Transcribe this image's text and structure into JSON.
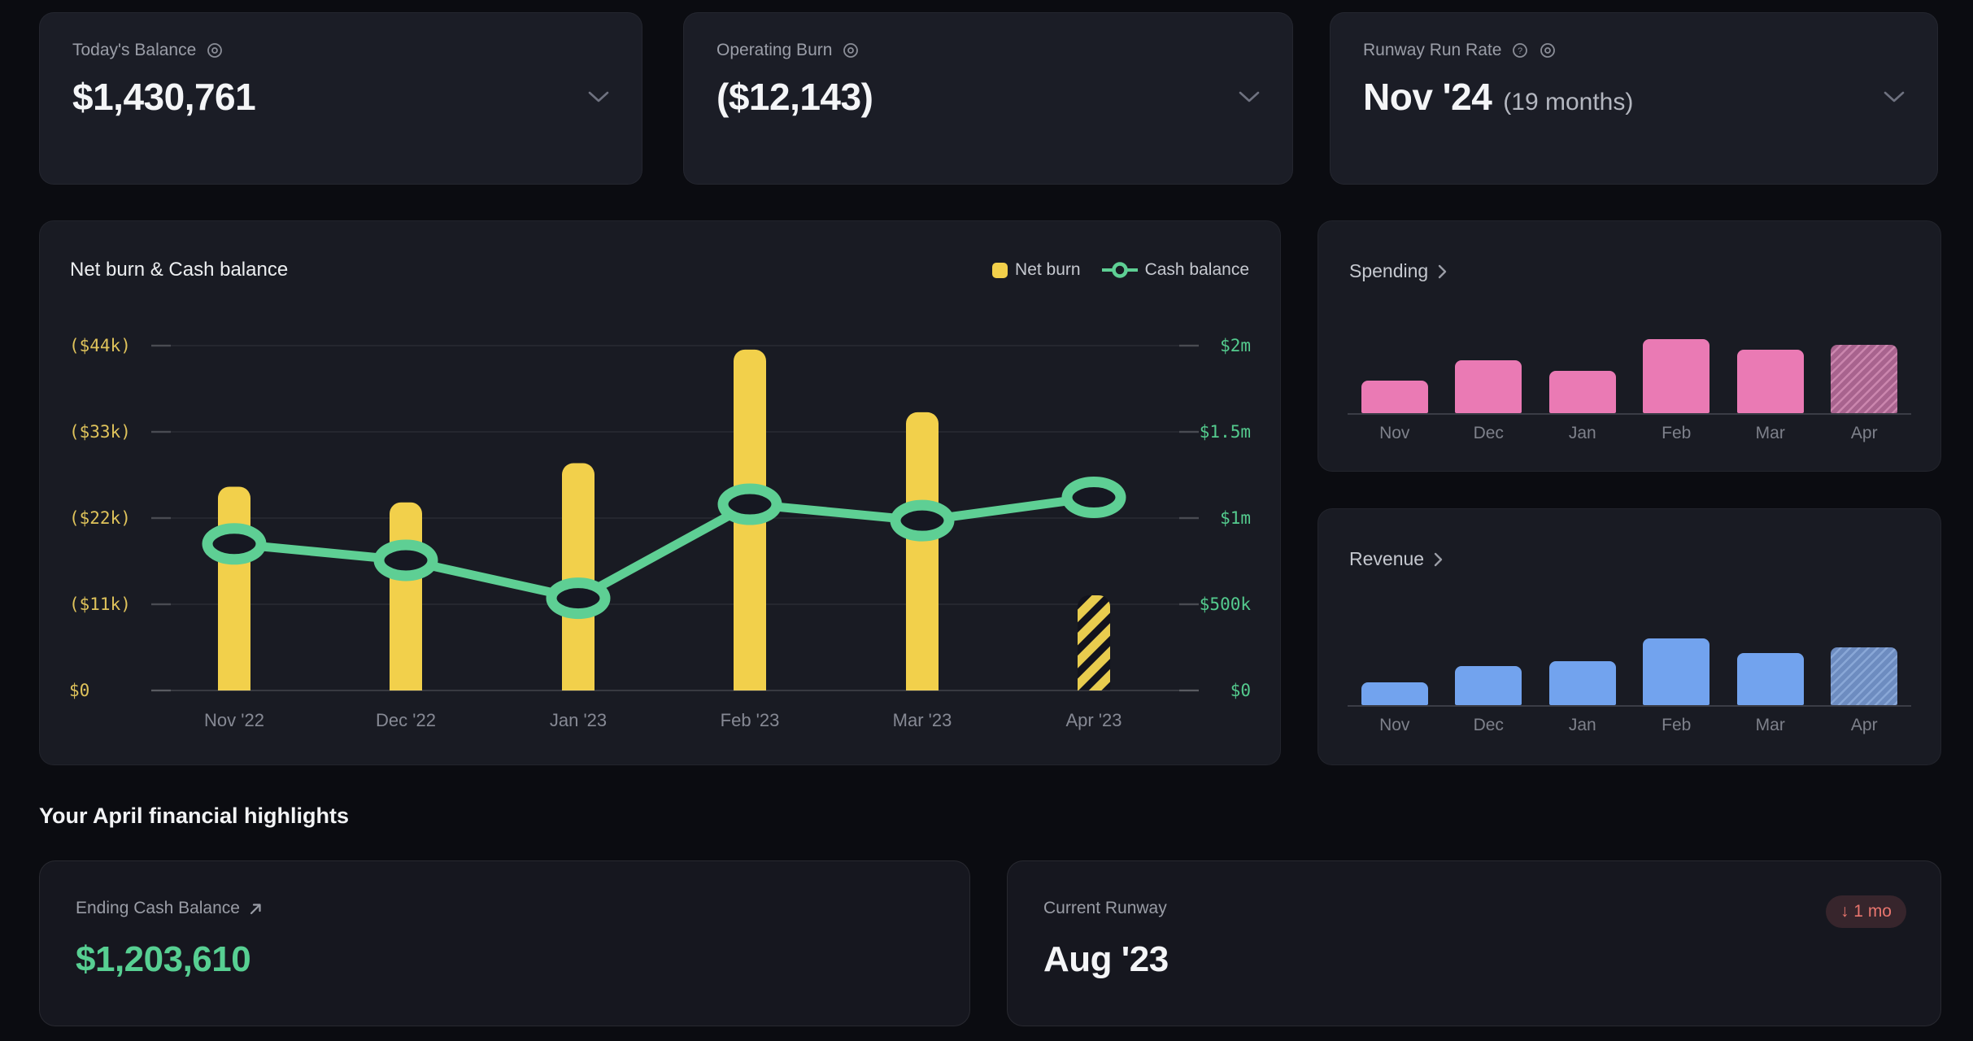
{
  "colors": {
    "yellow": "#f2d04b",
    "green": "#5ecf94",
    "pink": "#ea7ab4",
    "blue": "#72a3ee",
    "red": "#e8756e",
    "axis_yellow": "#dfc35b",
    "axis_green": "#54cb8e"
  },
  "stat_cards": [
    {
      "label": "Today's Balance",
      "value": "$1,430,761"
    },
    {
      "label": "Operating Burn",
      "value": "($12,143)"
    },
    {
      "label": "Runway Run Rate",
      "value": "Nov '24",
      "value_suffix": "(19 months)"
    }
  ],
  "main_chart": {
    "title": "Net burn & Cash balance",
    "legend": [
      {
        "label": "Net burn"
      },
      {
        "label": "Cash balance"
      }
    ],
    "left_axis_labels": [
      "($44k)",
      "($33k)",
      "($22k)",
      "($11k)",
      "$0"
    ],
    "right_axis_labels": [
      "$2m",
      "$1.5m",
      "$1m",
      "$500k",
      "$0"
    ],
    "chart_data": {
      "type": "bar+line",
      "categories": [
        "Nov '22",
        "Dec '22",
        "Jan '23",
        "Feb '23",
        "Mar '23",
        "Apr '23"
      ],
      "series": [
        {
          "name": "Net burn",
          "type": "bar",
          "axis": "left",
          "values": [
            -26000,
            -24000,
            -29000,
            -43500,
            -35500,
            -12143
          ],
          "forecast_last": true
        },
        {
          "name": "Cash balance",
          "type": "line",
          "axis": "right",
          "values": [
            850000,
            755000,
            535000,
            1080000,
            985000,
            1120000
          ]
        }
      ],
      "left_axis_range": [
        -44000,
        0
      ],
      "right_axis_range": [
        0,
        2000000
      ],
      "grid": true,
      "legend_position": "top-right"
    }
  },
  "spending": {
    "title": "Spending",
    "chart_data": {
      "type": "bar",
      "categories": [
        "Nov",
        "Dec",
        "Jan",
        "Feb",
        "Mar",
        "Apr"
      ],
      "values_pct_of_max": [
        44,
        71,
        57,
        100,
        86,
        92
      ],
      "forecast_last": true
    }
  },
  "revenue": {
    "title": "Revenue",
    "chart_data": {
      "type": "bar",
      "categories": [
        "Nov",
        "Dec",
        "Jan",
        "Feb",
        "Mar",
        "Apr"
      ],
      "values_pct_of_max": [
        34,
        59,
        66,
        100,
        78,
        87
      ],
      "forecast_last": true
    }
  },
  "highlights": {
    "heading": "Your April financial highlights",
    "cards": [
      {
        "label": "Ending Cash Balance",
        "value": "$1,203,610",
        "value_color": "#57cf92"
      },
      {
        "label": "Current Runway",
        "value": "Aug '23",
        "badge": "↓ 1 mo"
      }
    ]
  }
}
